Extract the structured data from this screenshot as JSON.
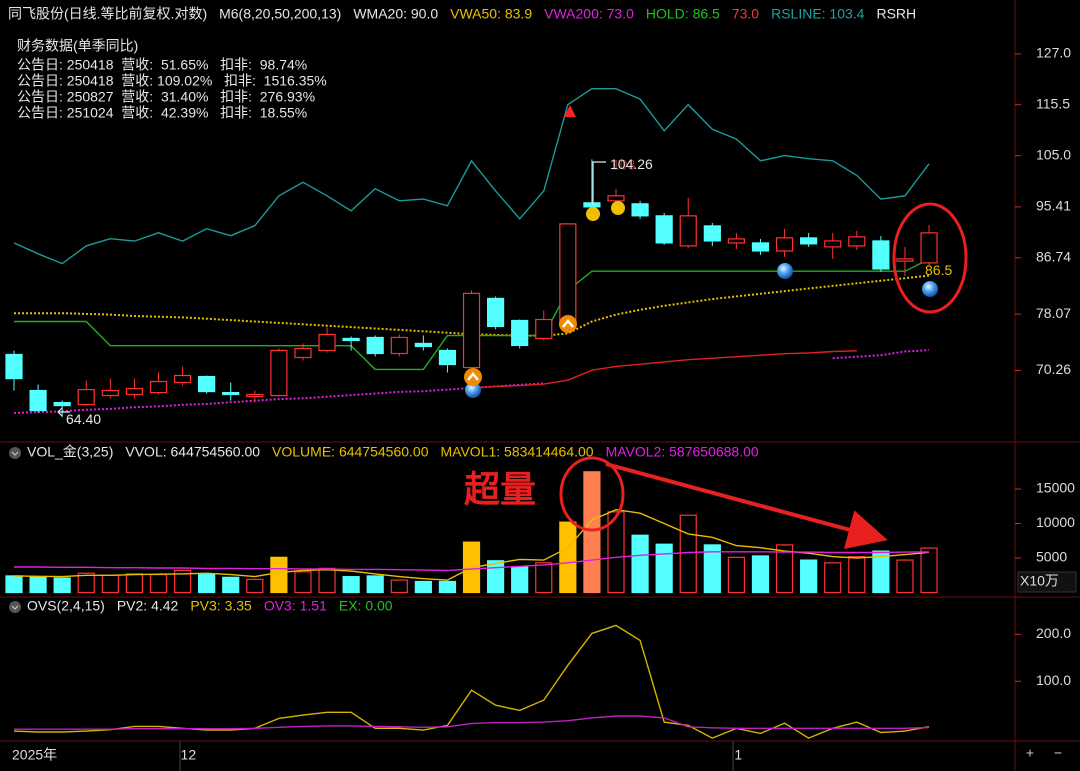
{
  "chart_data": [
    {
      "type": "candlestick",
      "title": "同飞股份(日线.等比前复权.对数)",
      "header": [
        {
          "text": "M6(8,20,50,200,13)",
          "color": "#e6e6e6"
        },
        {
          "text": "WMA20: 90.0",
          "color": "#e6e6e6"
        },
        {
          "text": "VWA50: 83.9",
          "color": "#e6c000"
        },
        {
          "text": "VWA200: 73.0",
          "color": "#e020e0"
        },
        {
          "text": "HOLD: 86.5",
          "color": "#20c020"
        },
        {
          "text": "73.0",
          "color": "#ff3030"
        },
        {
          "text": "RSLINE: 103.4",
          "color": "#20a0a0"
        },
        {
          "text": "RSRH",
          "color": "#e6e6e6"
        }
      ],
      "notes": {
        "title": "财务数据(单季同比)",
        "rows": [
          "公告日: 250418  营收:  51.65%   扣非:  98.74%",
          "公告日: 250418  营收: 109.02%   扣非:  1516.35%",
          "公告日: 250827  营收:  31.40%   扣非:  276.93%",
          "公告日: 251024  营收:  42.39%   扣非:  18.55%"
        ]
      },
      "categories": [
        "2025年",
        null,
        null,
        null,
        null,
        null,
        null,
        "12",
        null,
        null,
        null,
        null,
        null,
        null,
        null,
        null,
        null,
        null,
        null,
        null,
        null,
        null,
        null,
        null,
        null,
        null,
        null,
        null,
        null,
        null,
        "1",
        null,
        null,
        null,
        null,
        null,
        null,
        null,
        null
      ],
      "open": [
        72.4,
        67.68,
        66.17,
        65.93,
        67.05,
        67.18,
        67.42,
        68.7,
        69.47,
        67.42,
        66.92,
        67.05,
        71.99,
        72.94,
        74.6,
        74.74,
        72.53,
        73.91,
        72.94,
        70.65,
        80.4,
        77.15,
        74.6,
        76.87,
        96.13,
        96.49,
        95.95,
        93.82,
        88.69,
        92.07,
        89.19,
        89.19,
        87.86,
        90.03,
        88.53,
        88.69,
        89.52,
        86.2,
        85.92
      ],
      "high": [
        72.94,
        68.44,
        66.42,
        68.96,
        69.21,
        69.21,
        70.0,
        70.79,
        69.61,
        68.7,
        67.68,
        73.22,
        73.91,
        76.15,
        74.88,
        75.02,
        75.16,
        75.02,
        73.22,
        81.61,
        80.7,
        77.29,
        78.61,
        92.59,
        104.26,
        98.68,
        96.49,
        94.34,
        97.03,
        92.59,
        90.88,
        89.86,
        91.56,
        90.88,
        90.88,
        91.22,
        90.36,
        88.53,
        92.24
      ],
      "low": [
        67.68,
        64.94,
        64.4,
        65.8,
        66.67,
        66.67,
        67.18,
        68.31,
        67.3,
        66.42,
        66.17,
        66.92,
        71.59,
        72.67,
        72.94,
        72.13,
        72.13,
        72.94,
        70.0,
        70.26,
        75.87,
        73.22,
        74.32,
        76.6,
        93.99,
        94.7,
        93.29,
        88.86,
        88.37,
        88.69,
        88.2,
        87.22,
        86.88,
        88.53,
        86.56,
        88.03,
        84.49,
        83.85,
        85.44
      ],
      "close": [
        69.21,
        65.19,
        65.8,
        67.8,
        67.68,
        67.93,
        68.83,
        69.61,
        67.55,
        67.18,
        67.18,
        72.94,
        73.22,
        75.16,
        74.32,
        72.53,
        74.74,
        73.49,
        71.05,
        81.16,
        76.29,
        73.63,
        77.29,
        92.42,
        95.41,
        97.4,
        93.82,
        89.19,
        93.82,
        89.52,
        89.86,
        87.86,
        90.03,
        89.03,
        89.52,
        90.2,
        84.95,
        86.56,
        90.88
      ],
      "up_color": "#ff3232",
      "down_color": "#54ffff",
      "log_scale": true,
      "grid": false,
      "ylim": [
        61.7,
        133.3
      ],
      "yticks": [
        {
          "value": 127,
          "label": "127.0"
        },
        115.5,
        {
          "value": 105,
          "label": "105.0"
        },
        95.41,
        86.74,
        78.07,
        70.26
      ],
      "lines": [
        {
          "color": "#1a9a9a",
          "dash": false,
          "values": [
            89.2,
            87.4,
            85.8,
            88.7,
            89.9,
            89.5,
            90.9,
            89.5,
            91.6,
            90.4,
            92.1,
            97.4,
            99.9,
            97.4,
            94.7,
            98.7,
            96.5,
            96.8,
            95.6,
            104.0,
            98.3,
            93.3,
            98.3,
            115.5,
            119.0,
            119.0,
            116.7,
            110.0,
            115.5,
            110.3,
            108.3,
            104.0,
            105.0,
            104.4,
            104.0,
            101.2,
            96.8,
            97.4,
            103.4
          ]
        },
        {
          "color": "#e6c000",
          "dash": true,
          "values": [
            78.2,
            78.2,
            78.2,
            78.1,
            78.0,
            77.8,
            77.7,
            77.6,
            77.4,
            77.2,
            77.0,
            76.8,
            76.6,
            76.4,
            76.2,
            76.0,
            75.8,
            75.6,
            75.4,
            75.2,
            75.1,
            75.0,
            75.0,
            75.3,
            77.0,
            78.0,
            78.7,
            79.3,
            79.8,
            80.3,
            80.7,
            81.1,
            81.5,
            81.9,
            82.3,
            82.7,
            83.1,
            83.5,
            83.9
          ]
        },
        {
          "color": "#e020e0",
          "dash": true,
          "values": [
            64.9,
            65.0,
            65.1,
            65.3,
            65.4,
            65.6,
            65.7,
            65.9,
            66.0,
            66.2,
            66.4,
            66.6,
            66.7,
            66.9,
            67.1,
            67.3,
            67.5,
            67.6,
            67.8,
            68.0,
            68.2,
            68.4,
            68.6,
            null,
            null,
            null,
            null,
            null,
            null,
            null,
            null,
            null,
            null,
            null,
            71.9,
            72.1,
            72.3,
            72.8,
            73.0
          ]
        },
        {
          "color": "#e02020",
          "dash": false,
          "values": [
            null,
            null,
            null,
            null,
            null,
            null,
            null,
            null,
            null,
            null,
            null,
            null,
            null,
            null,
            null,
            null,
            null,
            null,
            null,
            68.0,
            68.2,
            68.3,
            68.5,
            69.0,
            70.3,
            70.8,
            71.1,
            71.4,
            71.7,
            71.9,
            72.1,
            72.3,
            72.5,
            72.6,
            72.8,
            72.9,
            null,
            null,
            null
          ]
        },
        {
          "color": "#20b020",
          "dash": false,
          "values": [
            77.0,
            77.0,
            77.0,
            77.0,
            73.6,
            73.6,
            73.6,
            73.6,
            73.6,
            73.6,
            73.6,
            73.6,
            73.6,
            73.6,
            73.6,
            70.4,
            70.4,
            70.4,
            75.0,
            75.0,
            75.0,
            75.0,
            75.0,
            81.6,
            84.6,
            84.6,
            84.6,
            84.6,
            84.6,
            84.6,
            84.6,
            84.6,
            84.6,
            84.6,
            84.6,
            84.6,
            84.6,
            84.6,
            86.5
          ]
        }
      ],
      "annotations": [
        {
          "value": 64.4,
          "label": "64.40",
          "color": "#e6e6e6"
        },
        {
          "value": 103,
          "color": "#a02828"
        },
        {
          "value": 104.26,
          "color": "#e6e6e6"
        },
        {
          "value": 86.5,
          "color": "#e6c000"
        }
      ]
    },
    {
      "type": "bar",
      "title": "VOL_金(3,25)",
      "header": [
        {
          "text": "VVOL: 644754560.00",
          "color": "#e6e6e6"
        },
        {
          "text": "VOLUME: 644754560.00",
          "color": "#e6c000"
        },
        {
          "text": "MAVOL1: 583414464.00",
          "color": "#e6c000"
        },
        {
          "text": "MAVOL2: 587650688.00",
          "color": "#e020e0"
        }
      ],
      "values": [
        2400,
        2300,
        2100,
        2800,
        2500,
        2700,
        2600,
        3200,
        2700,
        2200,
        1900,
        5100,
        3000,
        3500,
        2300,
        2400,
        1800,
        1600,
        1600,
        7300,
        4600,
        3700,
        4300,
        10200,
        17500,
        11700,
        8300,
        7000,
        11200,
        6900,
        5100,
        5300,
        6900,
        4700,
        4300,
        5200,
        6000,
        4700,
        6447.5456
      ],
      "colors": [
        null,
        null,
        null,
        null,
        null,
        null,
        null,
        null,
        null,
        null,
        null,
        "#ffc000",
        null,
        null,
        null,
        null,
        null,
        null,
        null,
        "#ffc000",
        null,
        null,
        null,
        "#ffc000",
        "#ff7f50",
        null,
        null,
        null,
        null,
        null,
        null,
        null,
        null,
        null,
        null,
        null,
        null,
        null,
        null
      ],
      "lines": [
        {
          "color": "#e6c000",
          "dash": false,
          "values": [
            2400,
            2350,
            2300,
            2500,
            2500,
            2600,
            2650,
            2700,
            2800,
            2600,
            2300,
            2900,
            3200,
            3300,
            3100,
            2700,
            2300,
            2000,
            1800,
            3600,
            4200,
            4800,
            4700,
            6500,
            10500,
            12000,
            11500,
            10000,
            8500,
            8000,
            6800,
            6500,
            6000,
            5700,
            5200,
            5000,
            5200,
            5500,
            5834.1464
          ]
        },
        {
          "color": "#e020e0",
          "dash": false,
          "values": [
            3700,
            3700,
            3650,
            3650,
            3600,
            3600,
            3550,
            3550,
            3500,
            3500,
            3450,
            3450,
            3400,
            3400,
            3350,
            3350,
            3300,
            3250,
            3200,
            3400,
            3600,
            3800,
            4000,
            4300,
            4700,
            5100,
            5400,
            5600,
            5800,
            5900,
            5900,
            5900,
            5850,
            5850,
            5800,
            5800,
            5800,
            5850,
            5876.50688
          ]
        }
      ],
      "ylim": [
        0,
        19500
      ],
      "yticks": [
        15000,
        10000,
        5000
      ],
      "unit_label": "X10万",
      "annotation": "超量"
    },
    {
      "type": "line",
      "title": "OVS(2,4,15)",
      "header": [
        {
          "text": "PV2: 4.42",
          "color": "#e6e6e6"
        },
        {
          "text": "PV3: 3.35",
          "color": "#e6c000"
        },
        {
          "text": "OV3: 1.51",
          "color": "#e020e0"
        },
        {
          "text": "EX: 0.00",
          "color": "#20c020"
        }
      ],
      "lines": [
        {
          "color": "#d4b400",
          "dash": false,
          "values": [
            -6,
            -8,
            -8,
            -6,
            -3,
            4,
            4,
            0,
            -4,
            -4,
            0,
            21,
            28,
            34,
            34,
            0,
            0,
            -4,
            6,
            81,
            49,
            38,
            60,
            134,
            202,
            219,
            187,
            13,
            6,
            -21,
            0,
            -11,
            11,
            -21,
            0,
            13,
            -9,
            -6,
            3.35
          ]
        },
        {
          "color": "#c020c0",
          "dash": false,
          "values": [
            -2,
            -2,
            -2,
            -2,
            -2,
            -1,
            -1,
            -1,
            -1,
            -1,
            0,
            2,
            4,
            5,
            5,
            4,
            3,
            2,
            3,
            10,
            12,
            12,
            13,
            16,
            22,
            26,
            26,
            22,
            3,
            1,
            0,
            0,
            0,
            0,
            0,
            0,
            0,
            0,
            1.51
          ]
        }
      ],
      "ylim": [
        -25,
        273
      ],
      "yticks": [
        {
          "value": 200,
          "label": "200.0"
        },
        {
          "value": 100,
          "label": "100.0"
        }
      ]
    }
  ],
  "controls": [
    "+",
    "−"
  ]
}
